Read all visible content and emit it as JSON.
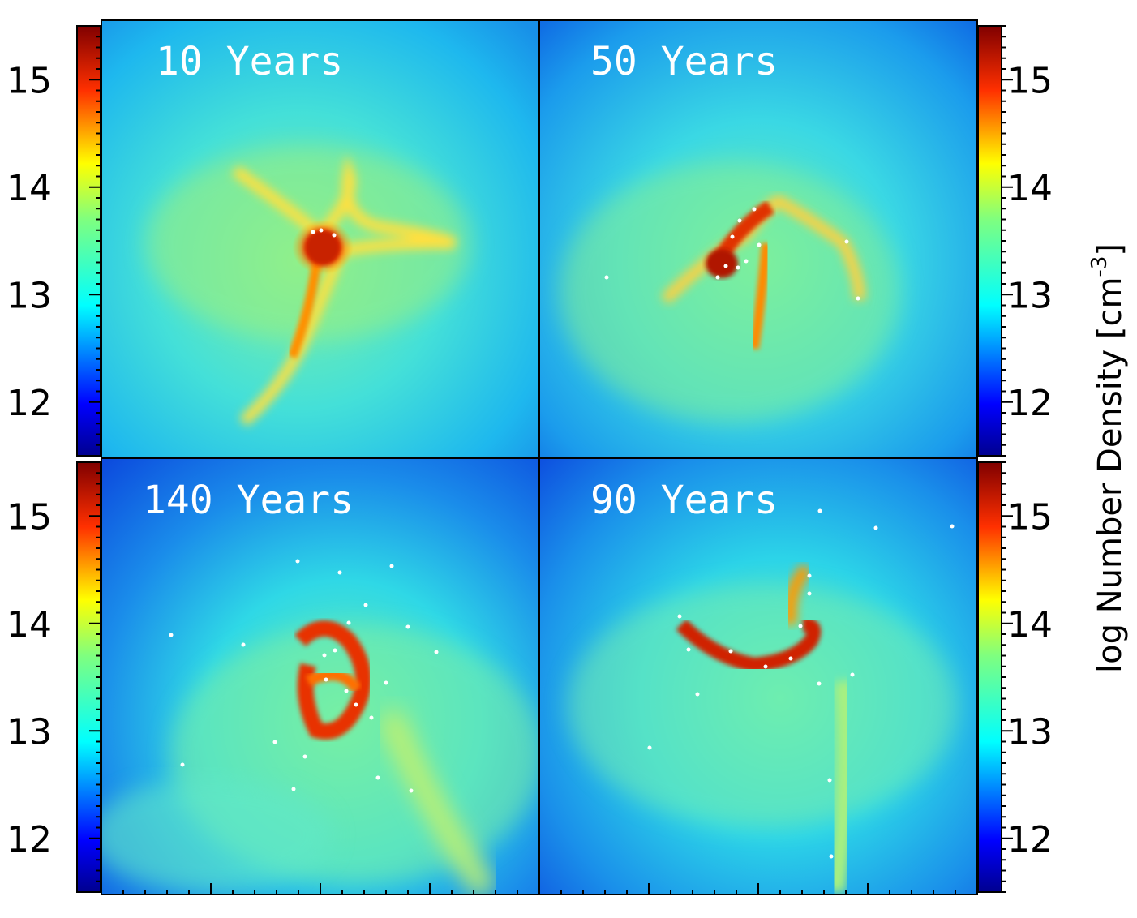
{
  "panels": [
    {
      "id": "p10",
      "title": "10 Years"
    },
    {
      "id": "p50",
      "title": "50 Years"
    },
    {
      "id": "p140",
      "title": "140 Years"
    },
    {
      "id": "p90",
      "title": "90 Years"
    }
  ],
  "colorbar": {
    "label_main": "log Number Density [cm",
    "label_sup": "-3",
    "label_close": "]",
    "range": [
      11.5,
      15.5
    ],
    "ticks": [
      "12",
      "13",
      "14",
      "15"
    ],
    "colormap": "rainbow (blue-cyan-green-yellow-red)"
  },
  "colors": {
    "low": "#00008f",
    "mid": "#00ffff",
    "high": "#800000",
    "sink_particles": "#ffffff"
  }
}
